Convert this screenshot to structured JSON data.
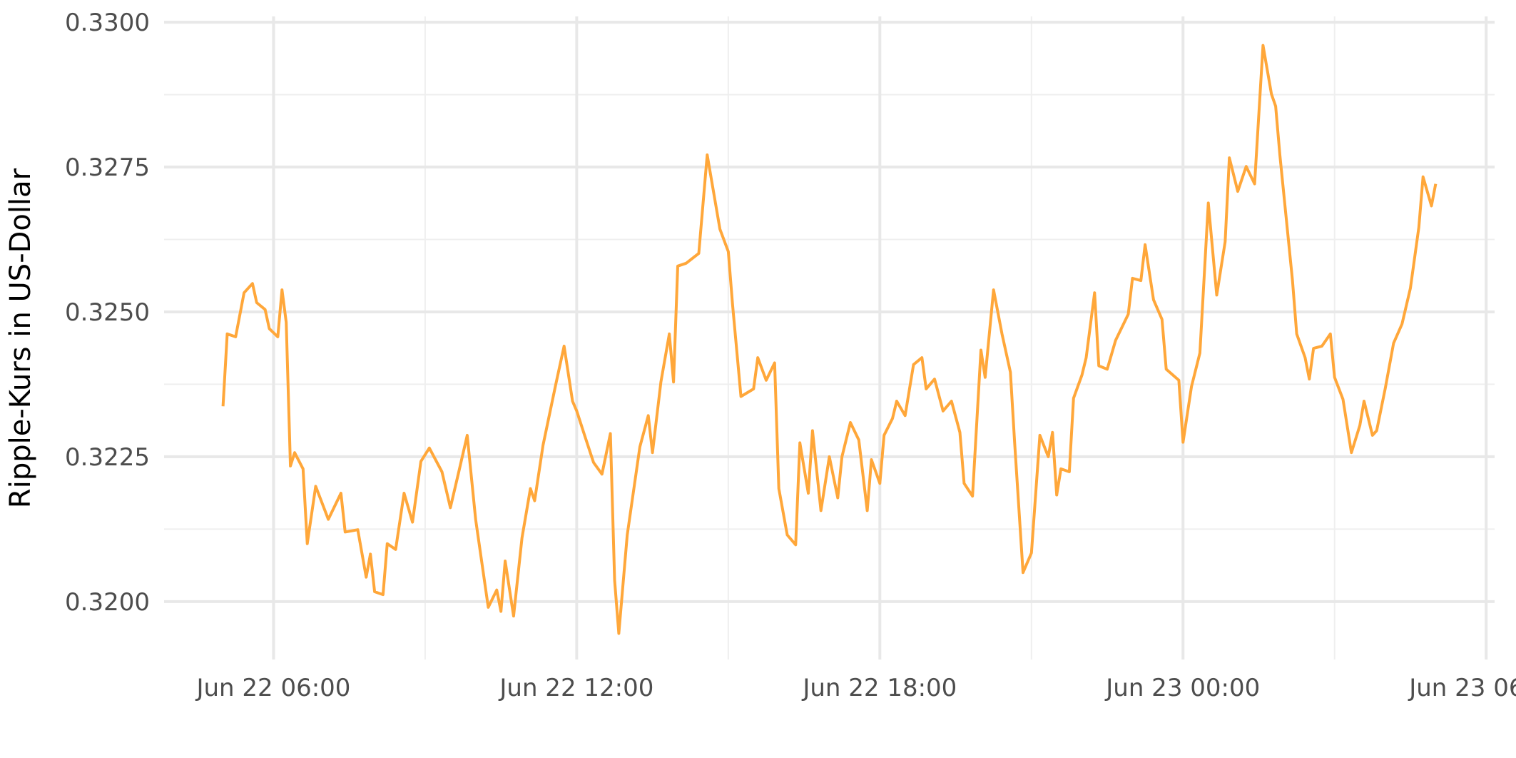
{
  "chart_data": {
    "type": "line",
    "y_label": "Ripple-Kurs in US-Dollar",
    "xlim": [
      "Jun 22 03:50",
      "Jun 23 06:10"
    ],
    "xticks": [
      "Jun 22 06:00",
      "Jun 22 12:00",
      "Jun 22 18:00",
      "Jun 23 00:00",
      "Jun 23 06:00"
    ],
    "minor_xticks": [
      "Jun 22 09:00",
      "Jun 22 15:00",
      "Jun 22 21:00",
      "Jun 23 03:00"
    ],
    "ylim": [
      0.319,
      0.3301
    ],
    "yticks": [
      {
        "value": 0.32,
        "label": "0.3200"
      },
      {
        "value": 0.3225,
        "label": "0.3225"
      },
      {
        "value": 0.325,
        "label": "0.3250"
      },
      {
        "value": 0.3275,
        "label": "0.3275"
      },
      {
        "value": 0.33,
        "label": "0.3300"
      }
    ],
    "minor_yticks": [
      0.32125,
      0.32375,
      0.32625,
      0.32875
    ],
    "grid": true,
    "series": [
      {
        "color": "#ffa73a",
        "x": [
          "Jun 22 05:00",
          "Jun 22 05:05",
          "Jun 22 05:15",
          "Jun 22 05:25",
          "Jun 22 05:35",
          "Jun 22 05:40",
          "Jun 22 05:50",
          "Jun 22 05:55",
          "Jun 22 06:05",
          "Jun 22 06:10",
          "Jun 22 06:15",
          "Jun 22 06:20",
          "Jun 22 06:25",
          "Jun 22 06:35",
          "Jun 22 06:40",
          "Jun 22 06:50",
          "Jun 22 07:05",
          "Jun 22 07:20",
          "Jun 22 07:25",
          "Jun 22 07:40",
          "Jun 22 07:50",
          "Jun 22 07:55",
          "Jun 22 08:00",
          "Jun 22 08:10",
          "Jun 22 08:15",
          "Jun 22 08:25",
          "Jun 22 08:35",
          "Jun 22 08:45",
          "Jun 22 08:55",
          "Jun 22 09:05",
          "Jun 22 09:20",
          "Jun 22 09:30",
          "Jun 22 09:40",
          "Jun 22 09:50",
          "Jun 22 10:00",
          "Jun 22 10:15",
          "Jun 22 10:25",
          "Jun 22 10:30",
          "Jun 22 10:35",
          "Jun 22 10:45",
          "Jun 22 10:55",
          "Jun 22 11:05",
          "Jun 22 11:10",
          "Jun 22 11:20",
          "Jun 22 11:35",
          "Jun 22 11:45",
          "Jun 22 11:55",
          "Jun 22 12:00",
          "Jun 22 12:10",
          "Jun 22 12:20",
          "Jun 22 12:30",
          "Jun 22 12:40",
          "Jun 22 12:45",
          "Jun 22 12:50",
          "Jun 22 13:00",
          "Jun 22 13:15",
          "Jun 22 13:25",
          "Jun 22 13:30",
          "Jun 22 13:40",
          "Jun 22 13:50",
          "Jun 22 13:55",
          "Jun 22 14:00",
          "Jun 22 14:10",
          "Jun 22 14:25",
          "Jun 22 14:35",
          "Jun 22 14:50",
          "Jun 22 15:00",
          "Jun 22 15:05",
          "Jun 22 15:15",
          "Jun 22 15:30",
          "Jun 22 15:35",
          "Jun 22 15:45",
          "Jun 22 15:55",
          "Jun 22 16:00",
          "Jun 22 16:10",
          "Jun 22 16:20",
          "Jun 22 16:25",
          "Jun 22 16:35",
          "Jun 22 16:40",
          "Jun 22 16:50",
          "Jun 22 17:00",
          "Jun 22 17:10",
          "Jun 22 17:15",
          "Jun 22 17:25",
          "Jun 22 17:35",
          "Jun 22 17:45",
          "Jun 22 17:50",
          "Jun 22 18:00",
          "Jun 22 18:05",
          "Jun 22 18:15",
          "Jun 22 18:20",
          "Jun 22 18:30",
          "Jun 22 18:40",
          "Jun 22 18:50",
          "Jun 22 18:55",
          "Jun 22 19:05",
          "Jun 22 19:15",
          "Jun 22 19:25",
          "Jun 22 19:35",
          "Jun 22 19:40",
          "Jun 22 19:50",
          "Jun 22 20:00",
          "Jun 22 20:05",
          "Jun 22 20:15",
          "Jun 22 20:25",
          "Jun 22 20:35",
          "Jun 22 20:40",
          "Jun 22 20:50",
          "Jun 22 21:00",
          "Jun 22 21:10",
          "Jun 22 21:20",
          "Jun 22 21:25",
          "Jun 22 21:30",
          "Jun 22 21:35",
          "Jun 22 21:45",
          "Jun 22 21:50",
          "Jun 22 22:00",
          "Jun 22 22:05",
          "Jun 22 22:15",
          "Jun 22 22:20",
          "Jun 22 22:30",
          "Jun 22 22:40",
          "Jun 22 22:55",
          "Jun 22 23:00",
          "Jun 22 23:10",
          "Jun 22 23:15",
          "Jun 22 23:25",
          "Jun 22 23:35",
          "Jun 22 23:40",
          "Jun 22 23:55",
          "Jun 23 00:00",
          "Jun 23 00:10",
          "Jun 23 00:20",
          "Jun 23 00:30",
          "Jun 23 00:40",
          "Jun 23 00:50",
          "Jun 23 00:55",
          "Jun 23 01:05",
          "Jun 23 01:15",
          "Jun 23 01:25",
          "Jun 23 01:35",
          "Jun 23 01:45",
          "Jun 23 01:50",
          "Jun 23 01:55",
          "Jun 23 02:10",
          "Jun 23 02:15",
          "Jun 23 02:25",
          "Jun 23 02:30",
          "Jun 23 02:35",
          "Jun 23 02:45",
          "Jun 23 02:55",
          "Jun 23 03:00",
          "Jun 23 03:10",
          "Jun 23 03:20",
          "Jun 23 03:30",
          "Jun 23 03:35",
          "Jun 23 03:45",
          "Jun 23 03:50",
          "Jun 23 04:00",
          "Jun 23 04:10",
          "Jun 23 04:20",
          "Jun 23 04:30",
          "Jun 23 04:40",
          "Jun 23 04:45",
          "Jun 23 04:55",
          "Jun 23 05:00"
        ],
        "values": [
          0.32337,
          0.32462,
          0.32457,
          0.32533,
          0.32549,
          0.32516,
          0.32504,
          0.32471,
          0.32457,
          0.32538,
          0.32482,
          0.32234,
          0.32257,
          0.32229,
          0.321,
          0.32199,
          0.32142,
          0.32187,
          0.3212,
          0.32124,
          0.32042,
          0.32082,
          0.32017,
          0.32012,
          0.321,
          0.3209,
          0.32187,
          0.32137,
          0.32242,
          0.32265,
          0.32224,
          0.32162,
          0.32224,
          0.32287,
          0.32142,
          0.3199,
          0.3202,
          0.31983,
          0.3207,
          0.31975,
          0.3211,
          0.32195,
          0.32174,
          0.3227,
          0.32374,
          0.32441,
          0.32346,
          0.32329,
          0.32284,
          0.3224,
          0.3222,
          0.3229,
          0.32037,
          0.31945,
          0.32115,
          0.32267,
          0.32321,
          0.32257,
          0.32379,
          0.32462,
          0.32379,
          0.32579,
          0.32584,
          0.32601,
          0.32771,
          0.32643,
          0.32604,
          0.32513,
          0.32354,
          0.32367,
          0.32421,
          0.32382,
          0.32412,
          0.32195,
          0.32115,
          0.32098,
          0.32274,
          0.32187,
          0.32295,
          0.32157,
          0.3225,
          0.32179,
          0.3225,
          0.32309,
          0.32279,
          0.32157,
          0.32245,
          0.32204,
          0.32287,
          0.32316,
          0.32346,
          0.32321,
          0.32409,
          0.32421,
          0.32367,
          0.32384,
          0.32329,
          0.32346,
          0.32292,
          0.32204,
          0.32182,
          0.32434,
          0.32387,
          0.32538,
          0.32462,
          0.32396,
          0.32275,
          0.3205,
          0.32084,
          0.32287,
          0.3225,
          0.32292,
          0.32184,
          0.32229,
          0.32224,
          0.32351,
          0.32391,
          0.32421,
          0.32533,
          0.32407,
          0.32401,
          0.32451,
          0.32496,
          0.32558,
          0.32554,
          0.32616,
          0.32521,
          0.32487,
          0.32401,
          0.32382,
          0.32275,
          0.32371,
          0.32429,
          0.32688,
          0.32529,
          0.32621,
          0.32766,
          0.32708,
          0.32751,
          0.32721,
          0.3296,
          0.32876,
          0.32855,
          0.32771,
          0.32554,
          0.32462,
          0.32421,
          0.32384,
          0.32437,
          0.32441,
          0.32462,
          0.32387,
          0.32349,
          0.32257,
          0.32304,
          0.32346,
          0.32287,
          0.32295,
          0.32367,
          0.32446,
          0.32479,
          0.32541,
          0.32646,
          0.32733,
          0.32683,
          0.32721
        ]
      }
    ]
  }
}
